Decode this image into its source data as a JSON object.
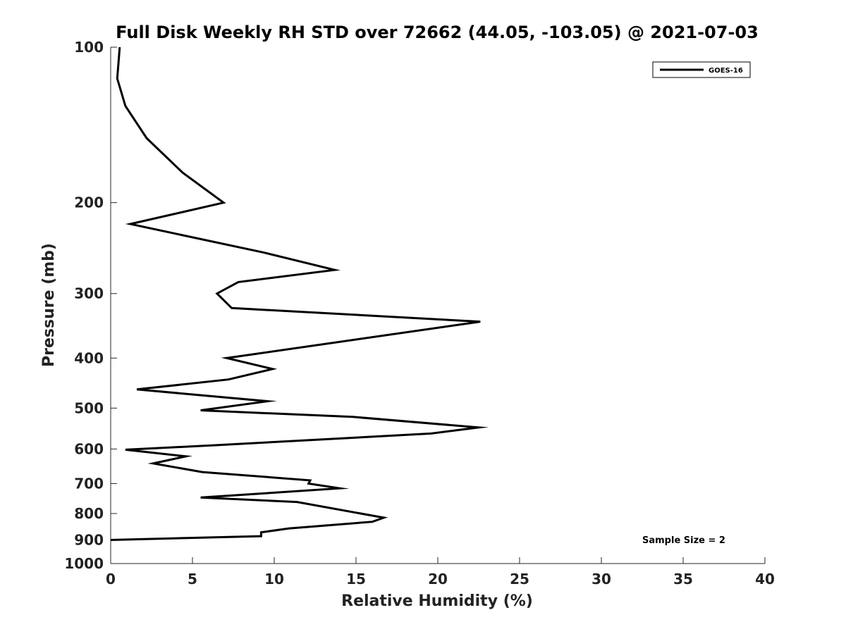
{
  "chart_data": {
    "type": "line",
    "title": "Full Disk Weekly RH STD over 72662 (44.05, -103.05) @ 2021-07-03",
    "xlabel": "Relative Humidity (%)",
    "ylabel": "Pressure (mb)",
    "xlim": [
      0,
      40
    ],
    "ylim": [
      100,
      1000
    ],
    "y_scale": "log",
    "y_reversed": true,
    "x_ticks": [
      0,
      5,
      10,
      15,
      20,
      25,
      30,
      35,
      40
    ],
    "y_ticks": [
      100,
      200,
      300,
      400,
      500,
      600,
      700,
      800,
      900,
      1000
    ],
    "legend": {
      "position": "top-right",
      "entries": [
        "GOES-16"
      ]
    },
    "annotations": [
      "Sample Size = 2"
    ],
    "series": [
      {
        "name": "GOES-16",
        "color": "#000000",
        "x": [
          0.55,
          0.4,
          0.9,
          2.2,
          4.4,
          6.9,
          1.2,
          9.4,
          13.7,
          7.8,
          6.5,
          7.4,
          22.6,
          7.1,
          9.9,
          7.2,
          1.6,
          9.6,
          5.5,
          14.8,
          22.5,
          19.6,
          6.4,
          0.9,
          4.6,
          2.6,
          5.6,
          12.2,
          12.1,
          14.0,
          5.5,
          11.4,
          16.7,
          16.0,
          10.9,
          9.2,
          9.2,
          0.0
        ],
        "y": [
          100,
          115,
          130,
          150,
          175,
          200,
          220,
          250,
          270,
          285,
          300,
          320,
          340,
          400,
          420,
          440,
          460,
          485,
          505,
          520,
          545,
          560,
          590,
          602,
          620,
          640,
          665,
          690,
          700,
          715,
          745,
          760,
          815,
          830,
          855,
          870,
          885,
          900
        ]
      }
    ]
  }
}
